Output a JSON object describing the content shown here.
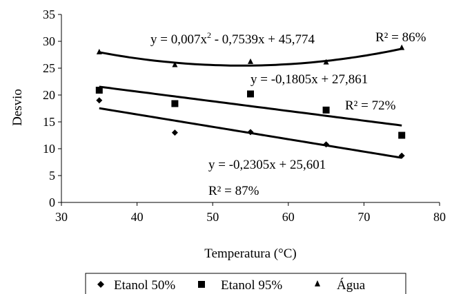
{
  "chart_data": {
    "type": "scatter",
    "title": "",
    "xlabel": "Temperatura (°C)",
    "ylabel": "Desvio",
    "xlim": [
      30,
      80
    ],
    "ylim": [
      0,
      35
    ],
    "xticks": [
      30,
      40,
      50,
      60,
      70,
      80
    ],
    "yticks": [
      0,
      5,
      10,
      15,
      20,
      25,
      30,
      35
    ],
    "grid": false,
    "legend_position": "bottom",
    "series": [
      {
        "name": "Etanol 50%",
        "marker": "diamond",
        "x": [
          35,
          45,
          55,
          65,
          75
        ],
        "y": [
          19.0,
          13.0,
          13.1,
          10.8,
          8.7
        ],
        "trend": {
          "kind": "linear",
          "coef": [
            25.601,
            -0.2305
          ]
        },
        "equation": "y = -0,2305x + 25,601",
        "r2": "R² = 87%"
      },
      {
        "name": "Etanol 95%",
        "marker": "square",
        "x": [
          35,
          45,
          55,
          65,
          75
        ],
        "y": [
          20.9,
          18.4,
          20.2,
          17.2,
          12.5
        ],
        "trend": {
          "kind": "linear",
          "coef": [
            27.861,
            -0.1805
          ]
        },
        "equation": "y = -0,1805x + 27,861",
        "r2": "R² = 72%"
      },
      {
        "name": "Água",
        "marker": "triangle",
        "x": [
          35,
          45,
          55,
          65,
          75
        ],
        "y": [
          28.1,
          25.7,
          26.3,
          26.2,
          28.9
        ],
        "trend": {
          "kind": "poly2",
          "coef": [
            45.774,
            -0.7539,
            0.007
          ]
        },
        "equation_parts": [
          "y = 0,007x",
          "2",
          " - 0,7539x + 45,774"
        ],
        "r2": "R² = 86%"
      }
    ]
  }
}
